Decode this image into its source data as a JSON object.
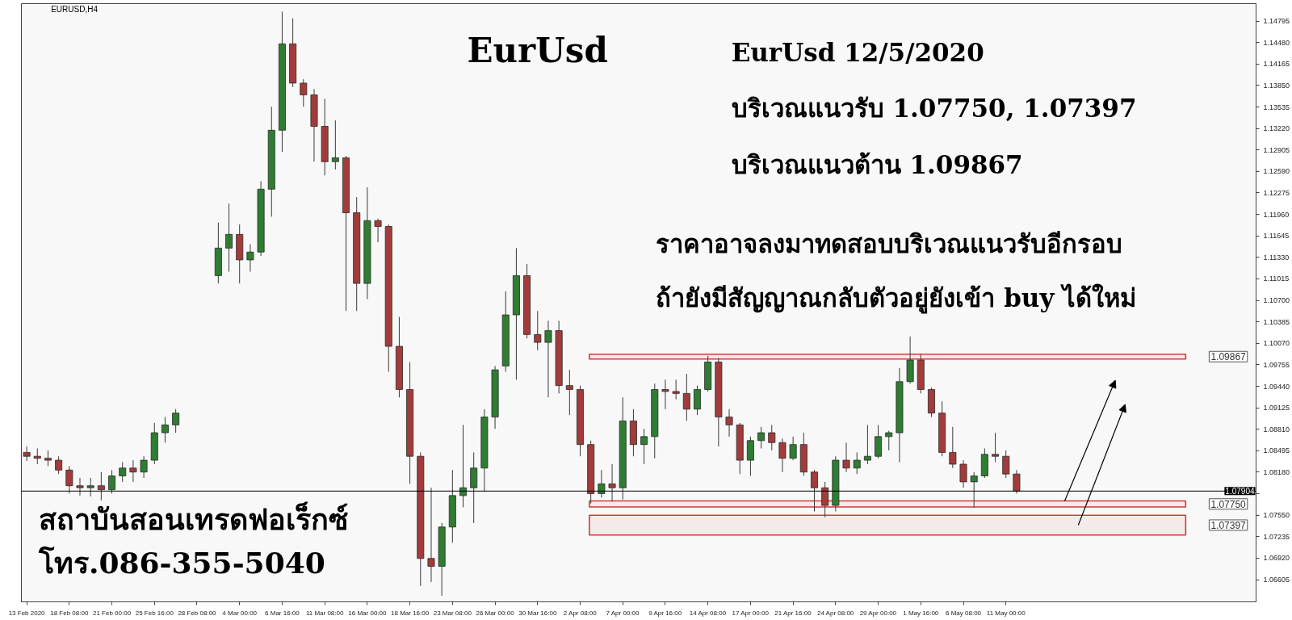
{
  "chart_data": {
    "type": "candlestick",
    "title": "EurUsd",
    "annotations": [
      "EURUSD,H4",
      "EurUsd 12/5/2020",
      "บริเวณแนวรับ 1.07750, 1.07397",
      "บริเวณแนวต้าน 1.09867",
      "ราคาอาจลงมาทดสอบบริเวณแนวรับอีกรอบ",
      "ถ้ายังมีสัญญาณกลับตัวอยู่ยังเข้า buy ได้ใหม่",
      "สถาบันสอนเทรดฟอเร็กซ์",
      "โทร.086-355-5040"
    ],
    "categories": [
      "13 Feb 2020",
      null,
      null,
      null,
      "18 Feb 08:00",
      null,
      null,
      null,
      "21 Feb 00:00",
      null,
      null,
      null,
      "25 Feb 16:00",
      null,
      null,
      null,
      "28 Feb 08:00",
      null,
      null,
      null,
      "4 Mar 00:00",
      null,
      null,
      null,
      "6 Mar 16:00",
      null,
      null,
      null,
      "11 Mar 08:00",
      null,
      null,
      null,
      "16 Mar 00:00",
      null,
      null,
      null,
      "18 Mar 16:00",
      null,
      null,
      null,
      "23 Mar 08:00",
      null,
      null,
      null,
      "26 Mar 00:00",
      null,
      null,
      null,
      "30 Mar 16:00",
      null,
      null,
      null,
      "2 Apr 08:00",
      null,
      null,
      null,
      "7 Apr 00:00",
      null,
      null,
      null,
      "9 Apr 16:00",
      null,
      null,
      null,
      "14 Apr 08:00",
      null,
      null,
      null,
      "17 Apr 00:00",
      null,
      null,
      null,
      "21 Apr 16:00",
      null,
      null,
      null,
      "24 Apr 08:00",
      null,
      null,
      null,
      "29 Apr 00:00",
      null,
      null,
      null,
      "1 May 16:00",
      null,
      null,
      null,
      "6 May 08:00",
      null,
      null,
      null,
      "11 May 00:00",
      null,
      null,
      null,
      null,
      null,
      null,
      null,
      null,
      null,
      null,
      null,
      null,
      null,
      null,
      null,
      null,
      null,
      null,
      null,
      null,
      null,
      null,
      null
    ],
    "ohlc": [
      [
        1.08471,
        1.08558,
        1.08344,
        1.08414
      ],
      [
        1.08414,
        1.08529,
        1.08298,
        1.08385
      ],
      [
        1.08385,
        1.085,
        1.08269,
        1.08356
      ],
      [
        1.08356,
        1.08414,
        1.08154,
        1.08212
      ],
      [
        1.08212,
        1.08269,
        1.07867,
        1.07982
      ],
      [
        1.07982,
        1.08097,
        1.07838,
        1.07953
      ],
      [
        1.07953,
        1.08097,
        1.07826,
        1.07982
      ],
      [
        1.07982,
        1.08183,
        1.07768,
        1.07924
      ],
      [
        1.07924,
        1.08212,
        1.07867,
        1.08126
      ],
      [
        1.08126,
        1.08327,
        1.08039,
        1.08241
      ],
      [
        1.08241,
        1.08356,
        1.08039,
        1.08183
      ],
      [
        1.08183,
        1.08414,
        1.08097,
        1.08356
      ],
      [
        1.08356,
        1.08903,
        1.08298,
        1.08759
      ],
      [
        1.08759,
        1.08989,
        1.08615,
        1.08874
      ],
      [
        1.08874,
        1.09105,
        1.08759,
        1.09047
      ],
      null,
      null,
      null,
      [
        1.11063,
        1.1184,
        1.10948,
        1.11466
      ],
      [
        1.11466,
        1.12117,
        1.1112,
        1.11667
      ],
      [
        1.11667,
        1.11811,
        1.10948,
        1.11293
      ],
      [
        1.11293,
        1.11523,
        1.1112,
        1.11408
      ],
      [
        1.11408,
        1.12445,
        1.11351,
        1.1233
      ],
      [
        1.1233,
        1.13539,
        1.11927,
        1.13194
      ],
      [
        1.13194,
        1.14933,
        1.12877,
        1.14461
      ],
      [
        1.14461,
        1.14835,
        1.13827,
        1.13885
      ],
      [
        1.13885,
        1.13942,
        1.13539,
        1.13712
      ],
      [
        1.13712,
        1.13798,
        1.12733,
        1.13251
      ],
      [
        1.13251,
        1.13654,
        1.12531,
        1.12733
      ],
      [
        1.12733,
        1.13338,
        1.12618,
        1.1279
      ],
      [
        1.1279,
        1.12819,
        1.10544,
        1.11984
      ],
      [
        1.11984,
        1.12214,
        1.10544,
        1.10948
      ],
      [
        1.10948,
        1.12358,
        1.10717,
        1.11869
      ],
      [
        1.11869,
        1.11898,
        1.11552,
        1.11783
      ],
      [
        1.11783,
        1.11811,
        1.09652,
        1.10026
      ],
      [
        1.10026,
        1.10458,
        1.09277,
        1.09393
      ],
      [
        1.09393,
        1.09796,
        1.0801,
        1.08414
      ],
      [
        1.08414,
        1.08471,
        1.06513,
        1.06916
      ],
      [
        1.06916,
        1.07953,
        1.06571,
        1.06801
      ],
      [
        1.06801,
        1.07435,
        1.06369,
        1.07377
      ],
      [
        1.07377,
        1.08212,
        1.07147,
        1.07838
      ],
      [
        1.07838,
        1.08874,
        1.07665,
        1.07953
      ],
      [
        1.07953,
        1.08471,
        1.07435,
        1.08241
      ],
      [
        1.08241,
        1.09105,
        1.07895,
        1.08989
      ],
      [
        1.08989,
        1.09738,
        1.08817,
        1.09681
      ],
      [
        1.09738,
        1.10832,
        1.09652,
        1.10487
      ],
      [
        1.10487,
        1.11466,
        1.09537,
        1.11063
      ],
      [
        1.11063,
        1.11235,
        1.10141,
        1.10199
      ],
      [
        1.10199,
        1.10544,
        1.09968,
        1.10084
      ],
      [
        1.10084,
        1.104,
        1.09277,
        1.10256
      ],
      [
        1.10256,
        1.104,
        1.09335,
        1.0945
      ],
      [
        1.0945,
        1.09681,
        1.09018,
        1.09393
      ],
      [
        1.09393,
        1.0945,
        1.08414,
        1.08586
      ],
      [
        1.08586,
        1.08644,
        1.07722,
        1.07867
      ],
      [
        1.07867,
        1.08212,
        1.07809,
        1.0801
      ],
      [
        1.0801,
        1.08298,
        1.07751,
        1.07953
      ],
      [
        1.07953,
        1.09277,
        1.0778,
        1.08932
      ],
      [
        1.08932,
        1.09105,
        1.08414,
        1.08586
      ],
      [
        1.08586,
        1.08817,
        1.08298,
        1.08702
      ],
      [
        1.08702,
        1.09479,
        1.08385,
        1.09393
      ],
      [
        1.09393,
        1.09537,
        1.09105,
        1.09364
      ],
      [
        1.09364,
        1.09537,
        1.09249,
        1.09335
      ],
      [
        1.09335,
        1.09623,
        1.08932,
        1.09105
      ],
      [
        1.09105,
        1.0945,
        1.09018,
        1.09393
      ],
      [
        1.09393,
        1.09888,
        1.09364,
        1.09796
      ],
      [
        1.09796,
        1.09853,
        1.08558,
        1.08989
      ],
      [
        1.08989,
        1.09105,
        1.08702,
        1.08874
      ],
      [
        1.08874,
        1.08903,
        1.08154,
        1.08356
      ],
      [
        1.08356,
        1.08702,
        1.08126,
        1.08644
      ],
      [
        1.08644,
        1.08845,
        1.08529,
        1.08759
      ],
      [
        1.08759,
        1.08874,
        1.085,
        1.08615
      ],
      [
        1.08615,
        1.08673,
        1.08183,
        1.08385
      ],
      [
        1.08385,
        1.08702,
        1.08356,
        1.08586
      ],
      [
        1.08586,
        1.08759,
        1.08126,
        1.08183
      ],
      [
        1.08183,
        1.08212,
        1.07607,
        1.07953
      ],
      [
        1.07953,
        1.08039,
        1.07521,
        1.07693
      ],
      [
        1.07693,
        1.08414,
        1.07607,
        1.08356
      ],
      [
        1.08356,
        1.08615,
        1.08183,
        1.08241
      ],
      [
        1.08241,
        1.08471,
        1.08154,
        1.08356
      ],
      [
        1.08356,
        1.08874,
        1.08298,
        1.08414
      ],
      [
        1.08414,
        1.08874,
        1.08385,
        1.08702
      ],
      [
        1.08702,
        1.08788,
        1.085,
        1.08759
      ],
      [
        1.08759,
        1.09709,
        1.08327,
        1.09508
      ],
      [
        1.09508,
        1.1017,
        1.09479,
        1.09825
      ],
      [
        1.09825,
        1.09911,
        1.09335,
        1.09393
      ],
      [
        1.09393,
        1.09421,
        1.08989,
        1.09047
      ],
      [
        1.09047,
        1.0922,
        1.08414,
        1.08471
      ],
      [
        1.08471,
        1.08845,
        1.08241,
        1.08298
      ],
      [
        1.08298,
        1.08356,
        1.07953,
        1.08039
      ],
      [
        1.08039,
        1.08183,
        1.07665,
        1.08126
      ],
      [
        1.08126,
        1.08529,
        1.08097,
        1.08442
      ],
      [
        1.08442,
        1.08759,
        1.08327,
        1.08414
      ],
      [
        1.08414,
        1.085,
        1.08097,
        1.08154
      ],
      [
        1.08154,
        1.08212,
        1.07867,
        1.07904
      ],
      null,
      null,
      null,
      null,
      null,
      null,
      null,
      null,
      null,
      null,
      null,
      null,
      null,
      null,
      null,
      null,
      null,
      null,
      null,
      null,
      null,
      null
    ],
    "colors": [
      "#a33b3b",
      "#a33b3b",
      "#a33b3b",
      "#a33b3b",
      "#a33b3b",
      "#a33b3b",
      "#2e7d32",
      "#a33b3b",
      "#2e7d32",
      "#2e7d32",
      "#a33b3b",
      "#2e7d32",
      "#2e7d32",
      "#2e7d32",
      "#2e7d32",
      null,
      null,
      null,
      "#2e7d32",
      "#2e7d32",
      "#a33b3b",
      "#2e7d32",
      "#2e7d32",
      "#2e7d32",
      "#2e7d32",
      "#a33b3b",
      "#a33b3b",
      "#a33b3b",
      "#a33b3b",
      "#2e7d32",
      "#a33b3b",
      "#a33b3b",
      "#2e7d32",
      "#a33b3b",
      "#a33b3b",
      "#a33b3b",
      "#a33b3b",
      "#a33b3b",
      "#a33b3b",
      "#2e7d32",
      "#2e7d32",
      "#2e7d32",
      "#2e7d32",
      "#2e7d32",
      "#2e7d32",
      "#2e7d32",
      "#2e7d32",
      "#a33b3b",
      "#a33b3b",
      "#2e7d32",
      "#a33b3b",
      "#a33b3b",
      "#a33b3b",
      "#a33b3b",
      "#2e7d32",
      "#a33b3b",
      "#2e7d32",
      "#a33b3b",
      "#2e7d32",
      "#2e7d32",
      "#a33b3b",
      "#a33b3b",
      "#a33b3b",
      "#2e7d32",
      "#2e7d32",
      "#a33b3b",
      "#a33b3b",
      "#a33b3b",
      "#2e7d32",
      "#2e7d32",
      "#a33b3b",
      "#a33b3b",
      "#2e7d32",
      "#a33b3b",
      "#a33b3b",
      "#a33b3b",
      "#2e7d32",
      "#a33b3b",
      "#2e7d32",
      "#2e7d32",
      "#2e7d32",
      "#2e7d32",
      "#2e7d32",
      "#2e7d32",
      "#a33b3b",
      "#a33b3b",
      "#a33b3b",
      "#a33b3b",
      "#a33b3b",
      "#2e7d32",
      "#2e7d32",
      "#a33b3b",
      "#a33b3b",
      "#a33b3b",
      null,
      null,
      null,
      null,
      null,
      null,
      null,
      null,
      null,
      null,
      null,
      null,
      null,
      null,
      null,
      null,
      null,
      null,
      null,
      null,
      null,
      null
    ],
    "ylim": [
      1.0628,
      1.1505
    ],
    "yticks": [
      {
        "value": 1.14795,
        "label": "1.14795"
      },
      {
        "value": 1.1448,
        "label": "1.14480"
      },
      {
        "value": 1.14165,
        "label": "1.14165"
      },
      {
        "value": 1.1385,
        "label": "1.13850"
      },
      {
        "value": 1.13535,
        "label": "1.13535"
      },
      {
        "value": 1.1322,
        "label": "1.13220"
      },
      {
        "value": 1.12905,
        "label": "1.12905"
      },
      {
        "value": 1.1259,
        "label": "1.12590"
      },
      {
        "value": 1.12275,
        "label": "1.12275"
      },
      {
        "value": 1.1196,
        "label": "1.11960"
      },
      {
        "value": 1.11645,
        "label": "1.11645"
      },
      {
        "value": 1.1133,
        "label": "1.11330"
      },
      {
        "value": 1.11015,
        "label": "1.11015"
      },
      {
        "value": 1.107,
        "label": "1.10700"
      },
      {
        "value": 1.10385,
        "label": "1.10385"
      },
      {
        "value": 1.1007,
        "label": "1.10070"
      },
      {
        "value": 1.09755,
        "label": "1.09755"
      },
      {
        "value": 1.0944,
        "label": "1.09440"
      },
      {
        "value": 1.09125,
        "label": "1.09125"
      },
      {
        "value": 1.0881,
        "label": "1.08810"
      },
      {
        "value": 1.08495,
        "label": "1.08495"
      },
      {
        "value": 1.0818,
        "label": "1.08180"
      },
      {
        "value": 1.07865,
        "label": null
      },
      {
        "value": 1.0755,
        "label": "1.07550"
      },
      {
        "value": 1.07235,
        "label": "1.07235"
      },
      {
        "value": 1.0692,
        "label": "1.06920"
      },
      {
        "value": 1.06605,
        "label": "1.06605"
      }
    ],
    "ref_lines": [
      {
        "axis": "y",
        "value": 1.07904,
        "label": "1.07904",
        "color": "#000000"
      }
    ],
    "bands": [
      {
        "axis": "y",
        "from": 1.0984,
        "to": 1.0991,
        "label": "1.09867",
        "color": "#d03a3a"
      },
      {
        "axis": "y",
        "from": 1.0767,
        "to": 1.0776,
        "label": "1.07750",
        "color": "#d03a3a"
      },
      {
        "axis": "y",
        "from": 1.0726,
        "to": 1.0755,
        "label": "1.07397",
        "color": "#d03a3a"
      }
    ]
  }
}
